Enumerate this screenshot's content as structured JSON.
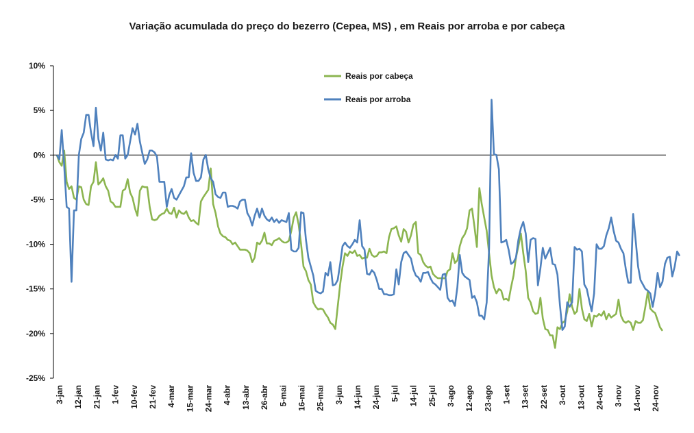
{
  "chart_data": {
    "type": "line",
    "title": "Variação acumulada do preço do bezerro (Cepea, MS) , em Reais  por arroba e por cabeça",
    "xlabel": "",
    "ylabel": "",
    "ylim": [
      -25,
      10
    ],
    "y_ticks": [
      10,
      5,
      0,
      -5,
      -10,
      -15,
      -20,
      -25
    ],
    "y_tick_labels": [
      "10%",
      "5%",
      "0%",
      "-5%",
      "-10%",
      "-15%",
      "-20%",
      "-25%"
    ],
    "x_tick_labels": [
      "3-jan",
      "12-jan",
      "21-jan",
      "1-fev",
      "10-fev",
      "21-fev",
      "4-mar",
      "15-mar",
      "24-mar",
      "4-abr",
      "13-abr",
      "26-abr",
      "5-mai",
      "16-mai",
      "25-mai",
      "3-jun",
      "14-jun",
      "24-jun",
      "5-jul",
      "14-jul",
      "25-jul",
      "3-ago",
      "12-ago",
      "23-ago",
      "1-set",
      "13-set",
      "22-set",
      "3-out",
      "13-out",
      "24-out",
      "3-nov",
      "14-nov",
      "24-nov"
    ],
    "legend_position": "top-center",
    "series": [
      {
        "name": "Reais por cabeça",
        "color": "#8CB550",
        "values": [
          0,
          -0.8,
          -1.2,
          0.5,
          -3,
          -3.8,
          -3.5,
          -4.8,
          -5,
          -3.5,
          -3.6,
          -5,
          -5.5,
          -5.6,
          -3.5,
          -3,
          -0.8,
          -3.3,
          -3,
          -2.6,
          -3.5,
          -4,
          -5.2,
          -5.4,
          -5.8,
          -5.8,
          -5.8,
          -4,
          -3.8,
          -2.7,
          -4.2,
          -4.8,
          -6,
          -6.8,
          -4,
          -3.5,
          -3.6,
          -3.6,
          -5.8,
          -7.2,
          -7.3,
          -7.2,
          -6.8,
          -6.6,
          -6.5,
          -6,
          -6.5,
          -6.6,
          -5.9,
          -7,
          -6.2,
          -6.5,
          -6.6,
          -6.3,
          -7,
          -7.4,
          -7.3,
          -7.6,
          -7.8,
          -5.2,
          -4.7,
          -4.3,
          -3.9,
          -1.5,
          -5.5,
          -6.5,
          -8,
          -8.8,
          -9.1,
          -9.2,
          -9.5,
          -9.6,
          -10,
          -9.8,
          -10.2,
          -10.6,
          -10.6,
          -10.6,
          -10.7,
          -11,
          -12,
          -11.5,
          -9.8,
          -10,
          -9.6,
          -8.7,
          -9.9,
          -9.9,
          -10.1,
          -9.6,
          -9.5,
          -9.3,
          -9.6,
          -9.8,
          -9.8,
          -9.6,
          -8.5,
          -7,
          -6.4,
          -7.8,
          -10,
          -12.5,
          -13,
          -14,
          -14.5,
          -16.5,
          -17,
          -17.3,
          -17.2,
          -17.3,
          -17.8,
          -18.2,
          -18.8,
          -19,
          -19.5,
          -17,
          -14.5,
          -12.5,
          -11,
          -11.3,
          -10.8,
          -11,
          -10.7,
          -11.3,
          -11.2,
          -11.6,
          -11.5,
          -11.5,
          -10.5,
          -11.2,
          -11.4,
          -11.3,
          -10.9,
          -10.9,
          -10.8,
          -11,
          -9.2,
          -8.3,
          -8.2,
          -8,
          -9,
          -9.7,
          -8.3,
          -8.6,
          -9.8,
          -9,
          -7.8,
          -7.5,
          -11,
          -11.2,
          -12,
          -12.4,
          -12.6,
          -12.5,
          -13.3,
          -13.6,
          -13.8,
          -13.8,
          -13.8,
          -13.8,
          -13,
          -12.8,
          -11,
          -12.1,
          -11.8,
          -10.2,
          -9.3,
          -8.9,
          -8.2,
          -6.2,
          -6,
          -8,
          -10.3,
          -3.7,
          -5.5,
          -7,
          -8.5,
          -11,
          -13.5,
          -14.8,
          -15.5,
          -15,
          -15.2,
          -16.2,
          -16.1,
          -16.3,
          -14.8,
          -13.5,
          -11.5,
          -10.2,
          -8.8,
          -11,
          -13,
          -16,
          -16.5,
          -17.5,
          -17.8,
          -17.7,
          -16,
          -18.3,
          -19.5,
          -19.6,
          -20.2,
          -20.2,
          -21.6,
          -19.3,
          -19.5,
          -18.8,
          -18.6,
          -17.5,
          -15.6,
          -17,
          -17.8,
          -17.5,
          -15,
          -17.2,
          -18.4,
          -18.6,
          -17.8,
          -19.2,
          -18,
          -18.1,
          -17.8,
          -18,
          -17.5,
          -18.4,
          -17.8,
          -18.2,
          -18,
          -17.8,
          -16.2,
          -18,
          -18.6,
          -18.8,
          -18.6,
          -18.8,
          -19.6,
          -18.6,
          -18.8,
          -18.8,
          -18.5,
          -17,
          -15.3,
          -17.2,
          -17.5,
          -17.7,
          -18.5,
          -19.3,
          -19.7
        ]
      },
      {
        "name": "Reais por arroba",
        "color": "#4F81BD",
        "values": [
          0,
          -0.5,
          2.8,
          -1.2,
          -5.8,
          -6,
          -14.2,
          -6.2,
          -6.2,
          0,
          1.8,
          2.5,
          4.5,
          4.5,
          2.5,
          1,
          5.3,
          1.8,
          0.5,
          2.5,
          -0.5,
          -0.6,
          -0.5,
          -0.6,
          0,
          -0.4,
          2.2,
          2.2,
          -0.4,
          0,
          1.5,
          3,
          2.3,
          3.5,
          1.5,
          0.2,
          -1,
          -0.5,
          0.5,
          0.5,
          0.3,
          -0.2,
          -3,
          -3,
          -3,
          -5.8,
          -4.5,
          -3.8,
          -4.8,
          -5,
          -4.5,
          -4,
          -3.5,
          -2.5,
          -2.5,
          0.2,
          -2,
          -2.9,
          -2.9,
          -2.5,
          -0.5,
          0,
          -1.6,
          -2.6,
          -3,
          -4.4,
          -4.7,
          -4.8,
          -4.2,
          -4.2,
          -5.8,
          -5.7,
          -5.7,
          -5.8,
          -6,
          -5.2,
          -5,
          -5,
          -6.5,
          -7,
          -7.9,
          -6.8,
          -6,
          -7,
          -6,
          -6.8,
          -7.2,
          -7.4,
          -7,
          -7.5,
          -7.2,
          -7.6,
          -7.3,
          -7.4,
          -7.5,
          -6.5,
          -10.6,
          -10.8,
          -10.8,
          -10.4,
          -6.4,
          -6.5,
          -9.5,
          -11.5,
          -12.5,
          -13.5,
          -15.2,
          -15.4,
          -15.5,
          -15.3,
          -13.2,
          -13.5,
          -12,
          -14.6,
          -14.5,
          -14,
          -12.2,
          -10.2,
          -9.8,
          -10.2,
          -10.4,
          -10,
          -9.5,
          -9.8,
          -7.3,
          -10.2,
          -10.6,
          -13.3,
          -13.4,
          -12.9,
          -13.2,
          -14,
          -15,
          -15,
          -15.6,
          -15.6,
          -15.7,
          -15.7,
          -15.6,
          -12.8,
          -14.5,
          -12,
          -11,
          -10.8,
          -11.2,
          -11.6,
          -12.8,
          -13.5,
          -13.7,
          -14.2,
          -13.2,
          -13.2,
          -13.1,
          -13.8,
          -14.3,
          -14.5,
          -14.8,
          -15.1,
          -13.4,
          -13.3,
          -16,
          -16.4,
          -16.3,
          -16.9,
          -14.8,
          -11.2,
          -13.2,
          -13.6,
          -13.8,
          -14,
          -16,
          -15.8,
          -16.5,
          -18,
          -18,
          -18.4,
          -16.5,
          -10.5,
          6.2,
          0.1,
          0,
          -1.6,
          -9.8,
          -9.7,
          -9.5,
          -10.6,
          -12.2,
          -12,
          -11.5,
          -9.5,
          -8.2,
          -7.5,
          -8.8,
          -12,
          -9.5,
          -9.3,
          -9.4,
          -14.6,
          -12.7,
          -10.4,
          -11.6,
          -11,
          -10.4,
          -12.2,
          -12.3,
          -13.4,
          -16.8,
          -19.6,
          -19.2,
          -16.5,
          -17,
          -16.5,
          -10.3,
          -10.6,
          -10.5,
          -10.8,
          -14.5,
          -15,
          -16.3,
          -17.5,
          -15.5,
          -10,
          -10.5,
          -10.5,
          -10.2,
          -9,
          -8.2,
          -7,
          -8.5,
          -9.6,
          -9.8,
          -10.5,
          -11,
          -12.8,
          -14.3,
          -14.3,
          -6.6,
          -9.5,
          -12.5,
          -14,
          -14.5,
          -15,
          -15.2,
          -15.5,
          -17,
          -15.5,
          -13.2,
          -14.8,
          -14.2,
          -12.2,
          -11.5,
          -11.4,
          -13.6,
          -12.5,
          -10.8,
          -11.3
        ]
      }
    ]
  }
}
